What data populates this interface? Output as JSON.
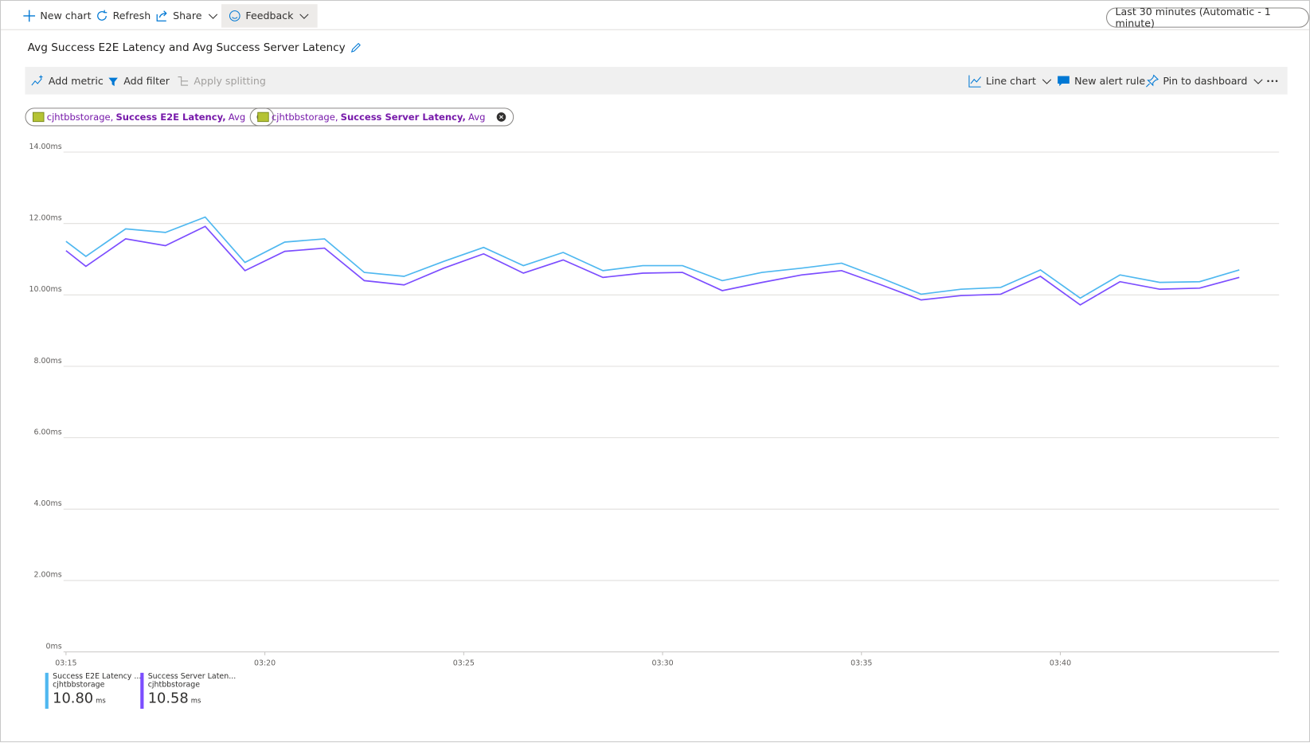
{
  "toolbar": {
    "items": [
      "New chart",
      "Refresh",
      "Share",
      "Feedback"
    ],
    "time_range": "Last 30 minutes (Automatic - 1 minute)"
  },
  "chart_toolbar": {
    "left": [
      "Add metric",
      "Add filter",
      "Apply splitting"
    ],
    "right": [
      "Line chart",
      "New alert rule",
      "Pin to dashboard"
    ]
  },
  "pills": [
    {
      "resource": "cjhtbbstorage,",
      "metric": "Success E2E Latency,",
      "aggregation": "Avg"
    },
    {
      "resource": "cjhtbbstorage,",
      "metric": "Success Server Latency,",
      "aggregation": "Avg"
    }
  ],
  "chart_data": {
    "type": "line",
    "title": "Avg Success E2E Latency and Avg Success Server Latency",
    "x": [
      15,
      15.5,
      16.5,
      17.5,
      18.5,
      19.5,
      20.5,
      21.5,
      22.5,
      23.5,
      24.5,
      25.5,
      26.5,
      27.5,
      28.5,
      29.5,
      30.5,
      31.5,
      32.5,
      33.5,
      34.5,
      35.5,
      36.5,
      37.5,
      38.5,
      39.5,
      40.5,
      41.5,
      42.5,
      43.5,
      44.5
    ],
    "xlim": [
      15,
      45.5
    ],
    "xticks": [
      {
        "value": 15,
        "label": "03:15"
      },
      {
        "value": 20,
        "label": "03:20"
      },
      {
        "value": 25,
        "label": "03:25"
      },
      {
        "value": 30,
        "label": "03:30"
      },
      {
        "value": 35,
        "label": "03:35"
      },
      {
        "value": 40,
        "label": "03:40"
      }
    ],
    "ylim": [
      0,
      14
    ],
    "yticks": [
      {
        "value": 0,
        "label": "0ms"
      },
      {
        "value": 2,
        "label": "2.00ms"
      },
      {
        "value": 4,
        "label": "4.00ms"
      },
      {
        "value": 6,
        "label": "6.00ms"
      },
      {
        "value": 8,
        "label": "8.00ms"
      },
      {
        "value": 10,
        "label": "10.00ms"
      },
      {
        "value": 12,
        "label": "12.00ms"
      },
      {
        "value": 14,
        "label": "14.00ms"
      }
    ],
    "grid": true,
    "series": [
      {
        "name": "Success E2E Latency ...",
        "resource": "cjhtbbstorage",
        "summary": "10.80",
        "unit": "ms",
        "color": "#4fb8f0",
        "values": [
          11.5,
          11.08,
          11.85,
          11.75,
          12.18,
          10.91,
          11.48,
          11.57,
          10.63,
          10.52,
          10.94,
          11.33,
          10.82,
          11.19,
          10.68,
          10.82,
          10.82,
          10.4,
          10.63,
          10.75,
          10.89,
          10.47,
          10.02,
          10.16,
          10.21,
          10.7,
          9.91,
          10.56,
          10.35,
          10.37,
          10.7
        ]
      },
      {
        "name": "Success Server Laten...",
        "resource": "cjhtbbstorage",
        "summary": "10.58",
        "unit": "ms",
        "color": "#7c4dff",
        "values": [
          11.24,
          10.8,
          11.57,
          11.38,
          11.92,
          10.68,
          11.22,
          11.31,
          10.4,
          10.28,
          10.75,
          11.15,
          10.61,
          10.98,
          10.49,
          10.61,
          10.63,
          10.12,
          10.35,
          10.56,
          10.68,
          10.28,
          9.86,
          9.98,
          10.02,
          10.52,
          9.72,
          10.37,
          10.16,
          10.19,
          10.49
        ]
      }
    ]
  }
}
